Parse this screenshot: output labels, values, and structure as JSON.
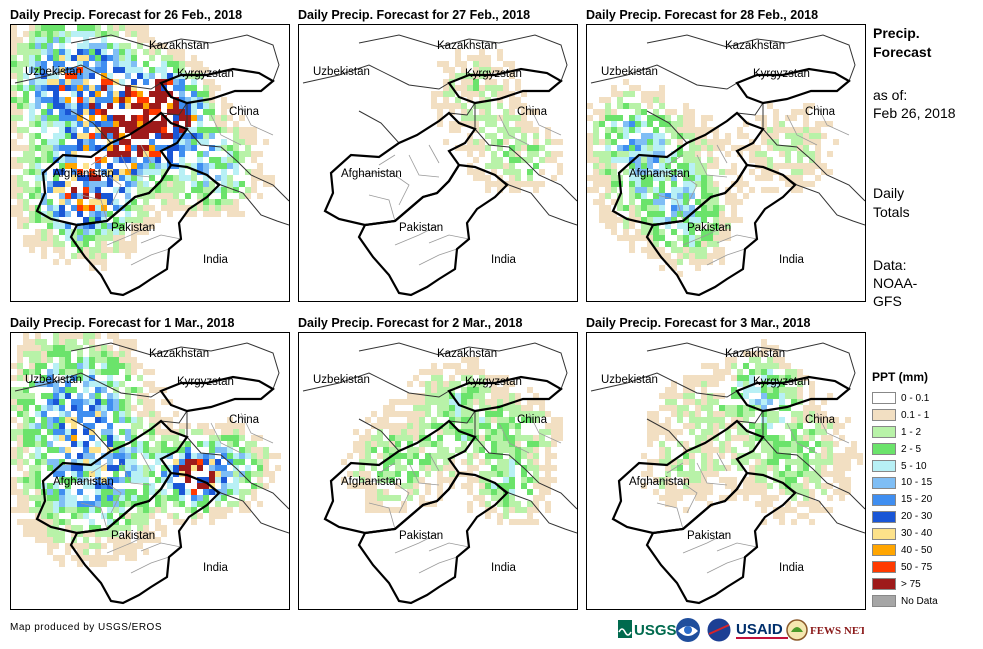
{
  "panels": [
    {
      "title": "Daily Precip. Forecast for 26 Feb., 2018",
      "intensity": 1.0,
      "seed": 11
    },
    {
      "title": "Daily Precip. Forecast for 27 Feb., 2018",
      "intensity": 0.35,
      "seed": 23
    },
    {
      "title": "Daily Precip. Forecast for 28 Feb., 2018",
      "intensity": 0.6,
      "seed": 37
    },
    {
      "title": "Daily Precip. Forecast for 1 Mar., 2018",
      "intensity": 0.85,
      "seed": 41
    },
    {
      "title": "Daily Precip. Forecast for 2 Mar., 2018",
      "intensity": 0.55,
      "seed": 53
    },
    {
      "title": "Daily Precip. Forecast for 3 Mar., 2018",
      "intensity": 0.5,
      "seed": 67
    }
  ],
  "country_labels": {
    "kazakhstan": "Kazakhstan",
    "uzbekistan": "Uzbekistan",
    "kyrgyzstan": "Kyrgyzstan",
    "china": "China",
    "afghanistan": "Afghanistan",
    "pakistan": "Pakistan",
    "india": "India"
  },
  "sidebar": {
    "title_line1": "Precip.",
    "title_line2": "Forecast",
    "asof_line1": "as of:",
    "asof_line2": "Feb 26, 2018",
    "daily_line1": "Daily",
    "daily_line2": "Totals",
    "data_line1": "Data:",
    "data_line2": "NOAA-",
    "data_line3": "GFS"
  },
  "legend": {
    "title": "PPT (mm)",
    "items": [
      {
        "label": "0 - 0.1",
        "color": "#ffffff"
      },
      {
        "label": "0.1 - 1",
        "color": "#f2dfc2"
      },
      {
        "label": "1 - 2",
        "color": "#b8f2a8"
      },
      {
        "label": "2 - 5",
        "color": "#6be36b"
      },
      {
        "label": "5 - 10",
        "color": "#b8f0f5"
      },
      {
        "label": "10 - 15",
        "color": "#7fbef5"
      },
      {
        "label": "15 - 20",
        "color": "#3f8ef0"
      },
      {
        "label": "20 - 30",
        "color": "#1a56d6"
      },
      {
        "label": "30 - 40",
        "color": "#fde28a"
      },
      {
        "label": "40 - 50",
        "color": "#ffa500"
      },
      {
        "label": "50 - 75",
        "color": "#ff3a00"
      },
      {
        "label": "> 75",
        "color": "#9e1a1a"
      },
      {
        "label": "No Data",
        "color": "#a6a6a6"
      }
    ]
  },
  "footer": {
    "credit": "Map produced by USGS/EROS"
  },
  "logos": {
    "usgs": "USGS",
    "usaid": "USAID",
    "fewsnet": "FEWS NET"
  }
}
